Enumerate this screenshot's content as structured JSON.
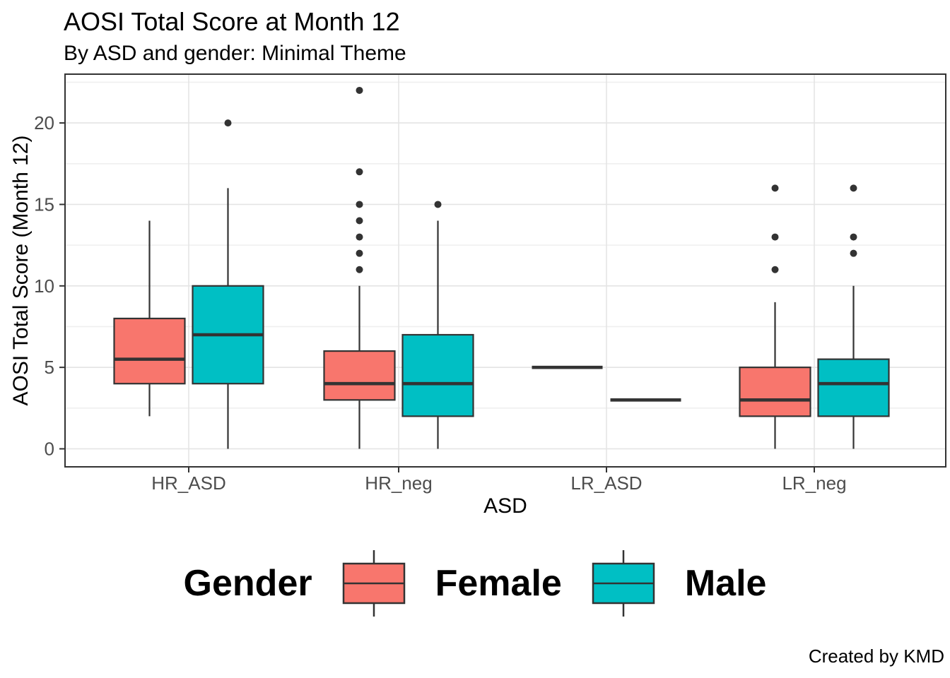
{
  "chart_data": {
    "type": "boxplot",
    "title": "AOSI Total Score at Month 12",
    "subtitle": "By ASD and gender: Minimal Theme",
    "caption": "Created by KMD",
    "xlabel": "ASD",
    "ylabel": "AOSI Total Score (Month 12)",
    "categories": [
      "HR_ASD",
      "HR_neg",
      "LR_ASD",
      "LR_neg"
    ],
    "y_ticks": [
      0,
      5,
      10,
      15,
      20
    ],
    "y_minor_ticks": [
      2.5,
      7.5,
      12.5,
      17.5,
      22.5
    ],
    "ylim": [
      -1.1,
      23.1
    ],
    "grid": true,
    "legend": {
      "title": "Gender",
      "position": "bottom",
      "entries": [
        {
          "label": "Female",
          "color": "#F8766D"
        },
        {
          "label": "Male",
          "color": "#00BFC4"
        }
      ]
    },
    "series": [
      {
        "name": "Female",
        "color": "#F8766D",
        "boxes": [
          {
            "category": "HR_ASD",
            "whisker_low": 2,
            "q1": 4,
            "median": 5.5,
            "q3": 8,
            "whisker_high": 14,
            "outliers": []
          },
          {
            "category": "HR_neg",
            "whisker_low": 0,
            "q1": 3,
            "median": 4,
            "q3": 6,
            "whisker_high": 10,
            "outliers": [
              11,
              12,
              13,
              14,
              15,
              17,
              22
            ]
          },
          {
            "category": "LR_ASD",
            "whisker_low": 5,
            "q1": 5,
            "median": 5,
            "q3": 5,
            "whisker_high": 5,
            "outliers": []
          },
          {
            "category": "LR_neg",
            "whisker_low": 0,
            "q1": 2,
            "median": 3,
            "q3": 5,
            "whisker_high": 9,
            "outliers": [
              11,
              13,
              16
            ]
          }
        ]
      },
      {
        "name": "Male",
        "color": "#00BFC4",
        "boxes": [
          {
            "category": "HR_ASD",
            "whisker_low": 0,
            "q1": 4,
            "median": 7,
            "q3": 10,
            "whisker_high": 16,
            "outliers": [
              20
            ]
          },
          {
            "category": "HR_neg",
            "whisker_low": 0,
            "q1": 2,
            "median": 4,
            "q3": 7,
            "whisker_high": 14,
            "outliers": [
              15
            ]
          },
          {
            "category": "LR_ASD",
            "whisker_low": 3,
            "q1": 3,
            "median": 3,
            "q3": 3,
            "whisker_high": 3,
            "outliers": []
          },
          {
            "category": "LR_neg",
            "whisker_low": 0,
            "q1": 2,
            "median": 4,
            "q3": 5.5,
            "whisker_high": 10,
            "outliers": [
              12,
              13,
              16
            ]
          }
        ]
      }
    ]
  }
}
